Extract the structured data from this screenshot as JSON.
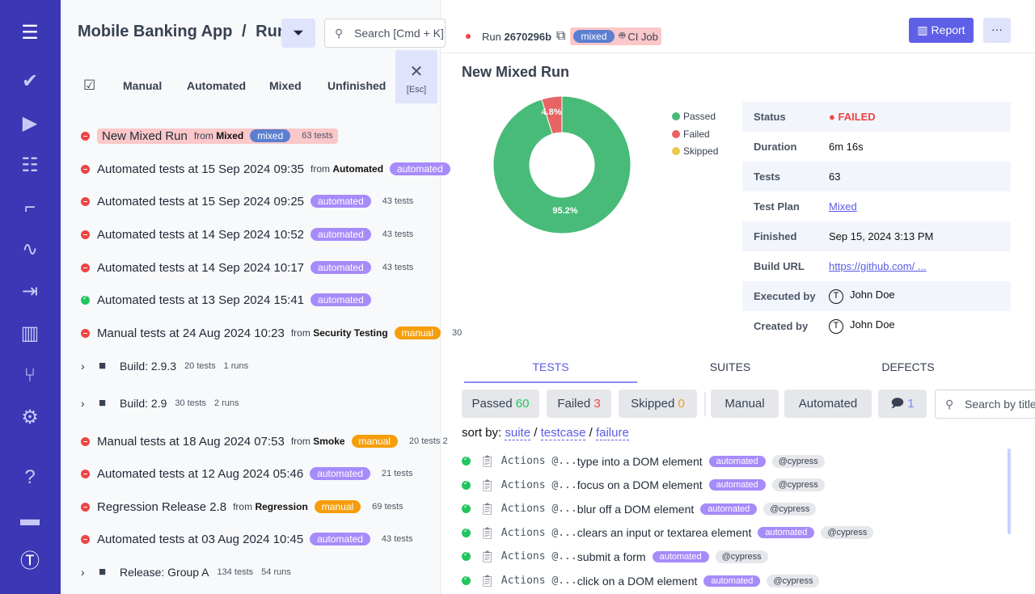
{
  "sidebar": {
    "items": [
      "menu",
      "tests",
      "runs",
      "plans",
      "steps",
      "analytics",
      "import",
      "reports",
      "branches",
      "settings",
      "help",
      "projects",
      "profile"
    ]
  },
  "header": {
    "project": "Mobile Banking App",
    "separator": "/",
    "page": "Runs",
    "search_placeholder": "Search [Cmd + K]"
  },
  "filter_tabs": [
    "Manual",
    "Automated",
    "Mixed",
    "Unfinished"
  ],
  "close": {
    "label": "[Esc]"
  },
  "runs": [
    {
      "status": "failed",
      "title": "New Mixed Run",
      "from": "Mixed",
      "badge": "mixed",
      "count": "63 tests",
      "highlight": true
    },
    {
      "status": "failed",
      "title": "Automated tests at 15 Sep 2024 09:35",
      "from": "Automated",
      "badge": "automated",
      "count": ""
    },
    {
      "status": "failed",
      "title": "Automated tests at 15 Sep 2024 09:25",
      "from": "",
      "badge": "automated",
      "count": "43 tests"
    },
    {
      "status": "failed",
      "title": "Automated tests at 14 Sep 2024 10:52",
      "from": "",
      "badge": "automated",
      "count": "43 tests"
    },
    {
      "status": "failed",
      "title": "Automated tests at 14 Sep 2024 10:17",
      "from": "",
      "badge": "automated",
      "count": "43 tests"
    },
    {
      "status": "passed",
      "title": "Automated tests at 13 Sep 2024 15:41",
      "from": "",
      "badge": "automated",
      "count": ""
    },
    {
      "status": "failed",
      "title": "Manual tests at 24 Aug 2024 10:23",
      "from": "Security Testing",
      "badge": "manual",
      "count": "30"
    },
    {
      "type": "build",
      "title": "Build: 2.9.3",
      "tests": "20 tests",
      "runs": "1 runs"
    },
    {
      "type": "build",
      "title": "Build: 2.9",
      "tests": "30 tests",
      "runs": "2 runs"
    },
    {
      "status": "failed",
      "title": "Manual tests at 18 Aug 2024 07:53",
      "from": "Smoke",
      "badge": "manual",
      "count": "20 tests  2"
    },
    {
      "status": "failed",
      "title": "Automated tests at 12 Aug 2024 05:46",
      "from": "",
      "badge": "automated",
      "count": "21 tests"
    },
    {
      "status": "failed",
      "title": "Regression Release 2.8",
      "from": "Regression",
      "badge": "manual",
      "count": "69 tests"
    },
    {
      "status": "failed",
      "title": "Automated tests at 03 Aug 2024 10:45",
      "from": "",
      "badge": "automated",
      "count": "43 tests"
    },
    {
      "type": "build",
      "title": "Release: Group A",
      "tests": "134 tests",
      "runs": "54 runs"
    }
  ],
  "run": {
    "label": "Run",
    "id": "2670296b",
    "badge": "mixed",
    "ci": "CI Job",
    "report": "Report",
    "more": "···",
    "title": "New Mixed Run"
  },
  "chart_data": {
    "type": "pie",
    "donut": true,
    "series": [
      {
        "name": "Passed",
        "value": 95.2,
        "color": "#48bb78"
      },
      {
        "name": "Failed",
        "value": 4.8,
        "color": "#e86363"
      },
      {
        "name": "Skipped",
        "value": 0,
        "color": "#ecc94b"
      }
    ],
    "labels": [
      "95.2%",
      "4.8%"
    ],
    "legend": "right"
  },
  "details": [
    {
      "k": "Status",
      "v": "FAILED"
    },
    {
      "k": "Duration",
      "v": "6m 16s"
    },
    {
      "k": "Tests",
      "v": "63"
    },
    {
      "k": "Test Plan",
      "v": "Mixed"
    },
    {
      "k": "Finished",
      "v": "Sep 15, 2024 3:13 PM"
    },
    {
      "k": "Build URL",
      "v": "https://github.com/ ..."
    },
    {
      "k": "Executed by",
      "v": "John Doe"
    },
    {
      "k": "Created by",
      "v": "John Doe"
    }
  ],
  "tabs": [
    "TESTS",
    "SUITES",
    "DEFECTS"
  ],
  "chips": {
    "passed": "Passed",
    "passed_n": "60",
    "failed": "Failed",
    "failed_n": "3",
    "skipped": "Skipped",
    "skipped_n": "0",
    "manual": "Manual",
    "automated": "Automated",
    "notes_n": "1",
    "search_placeholder": "Search by title"
  },
  "sort": {
    "label": "sort by:",
    "opts": [
      "suite",
      "testcase",
      "failure"
    ]
  },
  "tests": [
    {
      "suite": "Actions @...",
      "title": "type into a DOM element",
      "badge": "automated",
      "tag": "@cypress"
    },
    {
      "suite": "Actions @...",
      "title": "focus on a DOM element",
      "badge": "automated",
      "tag": "@cypress"
    },
    {
      "suite": "Actions @...",
      "title": "blur off a DOM element",
      "badge": "automated",
      "tag": "@cypress"
    },
    {
      "suite": "Actions @...",
      "title": "clears an input or textarea element",
      "badge": "automated",
      "tag": "@cypress"
    },
    {
      "suite": "Actions @...",
      "title": "submit a form",
      "badge": "automated",
      "tag": "@cypress"
    },
    {
      "suite": "Actions @...",
      "title": "click on a DOM element",
      "badge": "automated",
      "tag": "@cypress"
    }
  ]
}
